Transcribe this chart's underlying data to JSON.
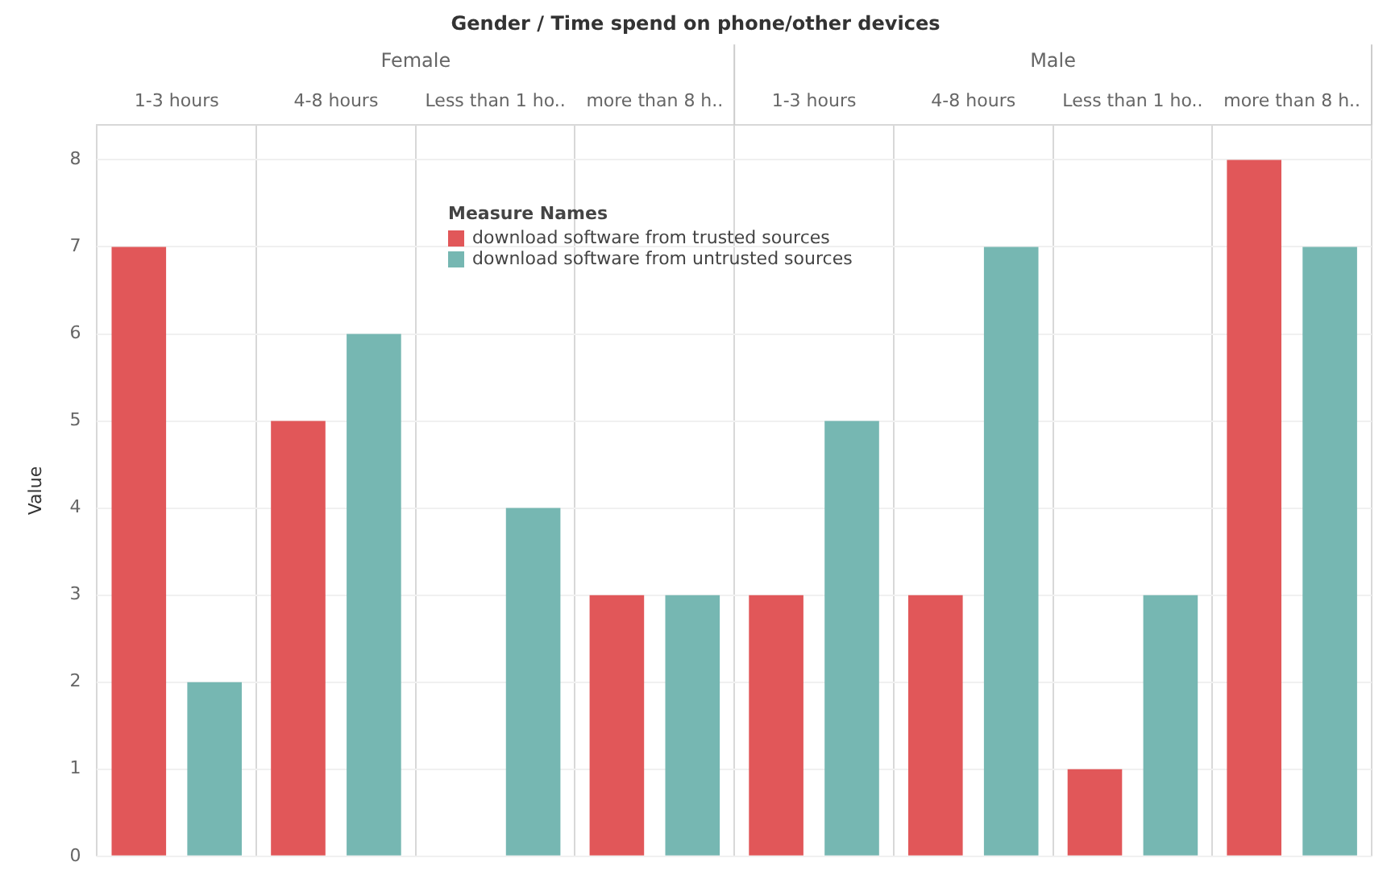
{
  "chart_data": {
    "type": "bar",
    "title": "Gender / Time spend on phone/other devices",
    "ylabel": "Value",
    "legend_title": "Measure Names",
    "categories": [
      "1-3 hours",
      "4-8 hours",
      "Less than 1 ho..",
      "more than 8 h..",
      "1-3 hours",
      "4-8 hours",
      "Less than 1 ho..",
      "more than 8 h.."
    ],
    "annotations": [
      "Female",
      "Male"
    ],
    "series": [
      {
        "name": "download software from trusted sources",
        "color": "#e15759",
        "values": [
          7,
          5,
          null,
          3,
          3,
          3,
          1,
          8
        ]
      },
      {
        "name": "download software from untrusted sources",
        "color": "#76b7b2",
        "values": [
          2,
          6,
          4,
          3,
          5,
          7,
          3,
          7
        ]
      }
    ],
    "ylim": [
      0,
      8.4
    ],
    "yticks": [
      0,
      1,
      2,
      3,
      4,
      5,
      6,
      7,
      8
    ],
    "grid": true,
    "legend": "top"
  }
}
